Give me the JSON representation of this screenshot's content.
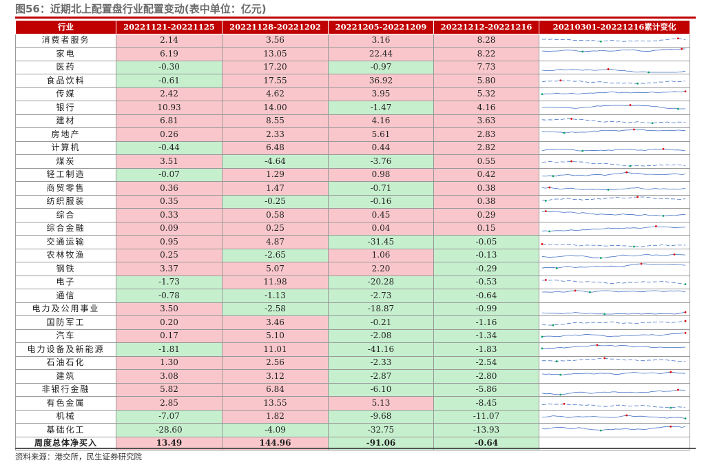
{
  "title": "图56：近期北上配置盘行业配置变动(表中单位：亿元)",
  "source": "资料来源：港交所，民生证券研究院",
  "colors": {
    "header": "#c00000",
    "positive": "#f9c7cb",
    "negative": "#c6efce",
    "sparkline": "#4472c4",
    "max_marker": "#e00000",
    "min_marker": "#00a060"
  },
  "chart_data": {
    "type": "table",
    "columns": [
      "行业",
      "20221121-20221125",
      "20221128-20221202",
      "20221205-20221209",
      "20221212-20221216",
      "20210301-20221216累计变化"
    ],
    "rows": [
      {
        "industry": "消费者服务",
        "values": [
          "2.14",
          "3.56",
          "3.16",
          "8.28"
        ]
      },
      {
        "industry": "家电",
        "values": [
          "6.19",
          "13.05",
          "22.44",
          "8.22"
        ]
      },
      {
        "industry": "医药",
        "values": [
          "-0.30",
          "17.20",
          "-0.97",
          "7.73"
        ]
      },
      {
        "industry": "食品饮料",
        "values": [
          "-0.61",
          "17.55",
          "36.92",
          "5.80"
        ]
      },
      {
        "industry": "传媒",
        "values": [
          "2.42",
          "4.62",
          "3.95",
          "5.32"
        ]
      },
      {
        "industry": "银行",
        "values": [
          "10.93",
          "14.00",
          "-1.47",
          "4.16"
        ]
      },
      {
        "industry": "建材",
        "values": [
          "6.81",
          "8.55",
          "4.16",
          "3.63"
        ]
      },
      {
        "industry": "房地产",
        "values": [
          "0.26",
          "2.33",
          "5.61",
          "2.83"
        ]
      },
      {
        "industry": "计算机",
        "values": [
          "-0.44",
          "6.48",
          "0.44",
          "2.82"
        ]
      },
      {
        "industry": "煤炭",
        "values": [
          "3.51",
          "-4.64",
          "-3.76",
          "0.55"
        ]
      },
      {
        "industry": "轻工制造",
        "values": [
          "-0.07",
          "1.29",
          "0.98",
          "0.42"
        ]
      },
      {
        "industry": "商贸零售",
        "values": [
          "0.36",
          "1.47",
          "-0.71",
          "0.38"
        ]
      },
      {
        "industry": "纺织服装",
        "values": [
          "0.35",
          "-0.25",
          "-0.16",
          "0.38"
        ]
      },
      {
        "industry": "综合",
        "values": [
          "0.33",
          "0.58",
          "0.45",
          "0.29"
        ]
      },
      {
        "industry": "综合金融",
        "values": [
          "0.09",
          "0.25",
          "0.04",
          "0.15"
        ]
      },
      {
        "industry": "交通运输",
        "values": [
          "0.95",
          "4.87",
          "-31.45",
          "-0.05"
        ]
      },
      {
        "industry": "农林牧渔",
        "values": [
          "0.25",
          "-2.65",
          "1.06",
          "-0.13"
        ]
      },
      {
        "industry": "钢铁",
        "values": [
          "3.37",
          "5.07",
          "2.20",
          "-0.29"
        ]
      },
      {
        "industry": "电子",
        "values": [
          "-1.73",
          "11.98",
          "-20.28",
          "-0.53"
        ]
      },
      {
        "industry": "通信",
        "values": [
          "-0.78",
          "-1.13",
          "-2.73",
          "-0.64"
        ]
      },
      {
        "industry": "电力及公用事业",
        "values": [
          "3.50",
          "-2.58",
          "-18.87",
          "-0.99"
        ]
      },
      {
        "industry": "国防军工",
        "values": [
          "0.20",
          "3.46",
          "-0.21",
          "-1.16"
        ]
      },
      {
        "industry": "汽车",
        "values": [
          "0.17",
          "5.10",
          "-2.08",
          "-1.34"
        ]
      },
      {
        "industry": "电力设备及新能源",
        "values": [
          "-1.81",
          "11.01",
          "-41.16",
          "-1.83"
        ]
      },
      {
        "industry": "石油石化",
        "values": [
          "1.30",
          "2.56",
          "-2.33",
          "-2.54"
        ]
      },
      {
        "industry": "建筑",
        "values": [
          "3.08",
          "3.12",
          "-2.87",
          "-2.80"
        ]
      },
      {
        "industry": "非银行金融",
        "values": [
          "5.82",
          "6.84",
          "-6.10",
          "-5.86"
        ]
      },
      {
        "industry": "有色金属",
        "values": [
          "2.85",
          "13.55",
          "5.13",
          "-8.45"
        ]
      },
      {
        "industry": "机械",
        "values": [
          "-7.07",
          "1.82",
          "-9.68",
          "-11.07"
        ]
      },
      {
        "industry": "基础化工",
        "values": [
          "-28.60",
          "-4.09",
          "-32.75",
          "-13.93"
        ]
      }
    ],
    "total": {
      "industry": "周度总体净买入",
      "values": [
        "13.49",
        "144.96",
        "-91.06",
        "-0.64"
      ]
    }
  }
}
